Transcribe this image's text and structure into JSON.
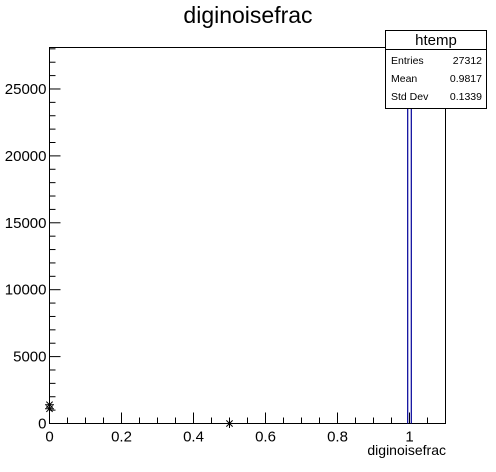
{
  "chart_data": {
    "type": "bar",
    "title": "diginoisefrac",
    "xlabel": "diginoisefrac",
    "ylabel": "",
    "xlim": [
      0,
      1.1
    ],
    "ylim": [
      0,
      28100
    ],
    "x_ticks": [
      0,
      0.2,
      0.4,
      0.6,
      0.8,
      1
    ],
    "x_tick_labels": [
      "0",
      "0.2",
      "0.4",
      "0.6",
      "0.8",
      "1"
    ],
    "y_ticks": [
      0,
      5000,
      10000,
      15000,
      20000,
      25000
    ],
    "y_tick_labels": [
      "0",
      "5000",
      "10000",
      "15000",
      "20000",
      "25000"
    ],
    "bins": [
      {
        "x_low": 0.995,
        "x_high": 1.005,
        "count": 24750
      }
    ],
    "points": [
      {
        "x": 0.0,
        "y": 1400
      },
      {
        "x": 0.0,
        "y": 1100
      },
      {
        "x": 0.5,
        "y": 0
      },
      {
        "x": 1.0,
        "y": 24750
      }
    ],
    "grid": false,
    "colors": {
      "bar": "#000099",
      "frame": "#000000"
    }
  },
  "stats": {
    "name": "htemp",
    "rows": [
      {
        "label": "Entries",
        "value": "27312"
      },
      {
        "label": "Mean",
        "value": "0.9817"
      },
      {
        "label": "Std Dev",
        "value": "0.1339"
      }
    ]
  }
}
